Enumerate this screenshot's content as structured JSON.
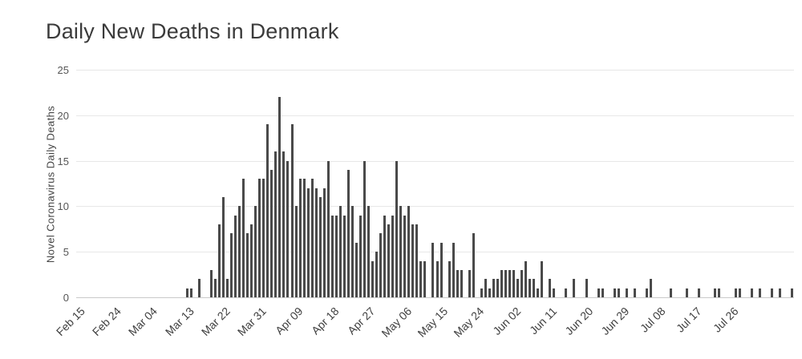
{
  "colors": {
    "bar": "#4a4a4a",
    "grid": "#e7e7e7",
    "axis_line": "#c9c9c9",
    "title_text": "#3b3b3b",
    "tick_text": "#555555",
    "background": "#ffffff"
  },
  "chart_data": {
    "type": "bar",
    "title": "Daily New Deaths in Denmark",
    "xlabel": "",
    "ylabel": "Novel Coronavirus Daily Deaths",
    "ylim": [
      0,
      25
    ],
    "y_ticks": [
      0,
      5,
      10,
      15,
      20,
      25
    ],
    "grid": "horizontal gridlines only",
    "legend": "none",
    "x_unit": "day",
    "x_tick_labels": [
      "Feb 15",
      "Feb 24",
      "Mar 04",
      "Mar 13",
      "Mar 22",
      "Mar 31",
      "Apr 09",
      "Apr 18",
      "Apr 27",
      "May 06",
      "May 15",
      "May 24",
      "Jun 02",
      "Jun 11",
      "Jun 20",
      "Jun 29",
      "Jul 08",
      "Jul 17",
      "Jul 26"
    ],
    "months": [
      {
        "month": "Feb",
        "start_day": 15,
        "values": [
          0,
          0,
          0,
          0,
          0,
          0,
          0,
          0,
          0,
          0,
          0,
          0,
          0,
          0,
          0
        ]
      },
      {
        "month": "Mar",
        "start_day": 1,
        "values": [
          0,
          0,
          0,
          0,
          0,
          0,
          0,
          0,
          0,
          0,
          0,
          0,
          1,
          1,
          0,
          2,
          0,
          0,
          3,
          2,
          8,
          11,
          2,
          7,
          9,
          10,
          13,
          7,
          8,
          10,
          13
        ]
      },
      {
        "month": "Apr",
        "start_day": 1,
        "values": [
          13,
          19,
          14,
          16,
          22,
          16,
          15,
          19,
          10,
          13,
          13,
          12,
          13,
          12,
          11,
          12,
          15,
          9,
          9,
          10,
          9,
          14,
          10,
          6,
          9,
          15,
          10,
          4,
          5,
          7
        ]
      },
      {
        "month": "May",
        "start_day": 1,
        "values": [
          9,
          8,
          9,
          15,
          10,
          9,
          10,
          8,
          8,
          4,
          4,
          0,
          6,
          4,
          6,
          0,
          4,
          6,
          3,
          3,
          0,
          3,
          7,
          0,
          1,
          2,
          1,
          2,
          2,
          3,
          3
        ]
      },
      {
        "month": "Jun",
        "start_day": 1,
        "values": [
          3,
          3,
          2,
          3,
          4,
          2,
          2,
          1,
          4,
          0,
          2,
          1,
          0,
          0,
          1,
          0,
          2,
          0,
          0,
          2,
          0,
          0,
          1,
          1,
          0,
          0,
          1,
          1,
          0,
          1
        ]
      },
      {
        "month": "Jul",
        "start_day": 1,
        "values": [
          0,
          1,
          0,
          0,
          1,
          2,
          0,
          0,
          0,
          0,
          1,
          0,
          0,
          0,
          1,
          0,
          0,
          1,
          0,
          0,
          0,
          1,
          1,
          0,
          0,
          0,
          1,
          1,
          0,
          0,
          1
        ]
      },
      {
        "month": "Aug",
        "start_day": 1,
        "values": [
          0,
          1,
          0,
          0,
          1,
          0,
          1,
          0,
          0,
          1
        ]
      }
    ]
  }
}
